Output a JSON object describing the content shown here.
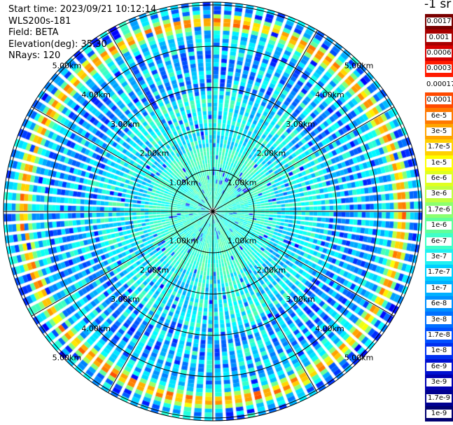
{
  "header": {
    "start_time": "Start time: 2023/09/21 10:12:14",
    "instrument": "WLS200s-181",
    "field": "Field: BETA",
    "elevation": "Elevation(deg): 35.30",
    "nrays": "NRays: 120"
  },
  "units_label": "-1 sr",
  "range_ring_labels": [
    "1.00km",
    "2.00km",
    "3.00km",
    "4.00km",
    "5.00km"
  ],
  "colorbar": {
    "labels": [
      "0.0017",
      "0.001",
      "0.0006",
      "0.0003",
      "0.00017",
      "0.0001",
      "6e-5",
      "3e-5",
      "1.7e-5",
      "1e-5",
      "6e-6",
      "3e-6",
      "1.7e-6",
      "1e-6",
      "6e-7",
      "3e-7",
      "1.7e-7",
      "1e-7",
      "6e-8",
      "3e-8",
      "1.7e-8",
      "1e-8",
      "6e-9",
      "3e-9",
      "1.7e-9",
      "1e-9"
    ],
    "colors": [
      "#7a0000",
      "#a80000",
      "#d50000",
      "#ff1a00",
      "#ffffff",
      "#ff4a00",
      "#ff7800",
      "#ffa500",
      "#ffd000",
      "#ffff00",
      "#e0ff20",
      "#c0ff40",
      "#8cff70",
      "#60ff9a",
      "#40ffc8",
      "#20f0f0",
      "#00d0ff",
      "#00b0ff",
      "#0090ff",
      "#0070ff",
      "#0050ff",
      "#0030f0",
      "#0010d0",
      "#0000b0",
      "#000090",
      "#000070"
    ]
  },
  "ppi": {
    "n_rays": 120,
    "max_range_km": 5.0
  }
}
